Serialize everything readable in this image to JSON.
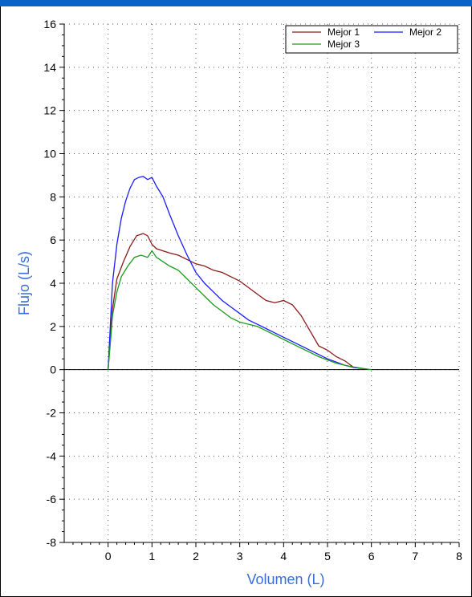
{
  "chart_data": {
    "type": "line",
    "title": "",
    "xlabel": "Volumen (L)",
    "ylabel": "Flujo (L/s)",
    "xlim": [
      -1,
      8
    ],
    "ylim": [
      -8,
      16
    ],
    "xticks": [
      0,
      1,
      2,
      3,
      4,
      5,
      6,
      7,
      8
    ],
    "yticks": [
      -8,
      -6,
      -4,
      -2,
      0,
      2,
      4,
      6,
      8,
      10,
      12,
      14,
      16
    ],
    "grid": true,
    "legend_position": "top-right",
    "series": [
      {
        "name": "Mejor 1",
        "color": "#8b1a1a",
        "x": [
          0,
          0.05,
          0.1,
          0.2,
          0.35,
          0.5,
          0.65,
          0.8,
          0.9,
          1.0,
          1.1,
          1.25,
          1.4,
          1.6,
          1.8,
          2.0,
          2.2,
          2.4,
          2.6,
          2.8,
          3.0,
          3.2,
          3.4,
          3.6,
          3.8,
          4.0,
          4.2,
          4.4,
          4.6,
          4.8,
          5.0,
          5.2,
          5.4,
          5.6
        ],
        "y": [
          0,
          1.5,
          2.8,
          4.2,
          5.0,
          5.7,
          6.2,
          6.3,
          6.2,
          5.8,
          5.6,
          5.5,
          5.4,
          5.3,
          5.1,
          4.9,
          4.8,
          4.6,
          4.5,
          4.3,
          4.1,
          3.8,
          3.5,
          3.2,
          3.1,
          3.2,
          3.0,
          2.5,
          1.8,
          1.1,
          0.9,
          0.6,
          0.4,
          0.1
        ]
      },
      {
        "name": "Mejor 2",
        "color": "#1a1aff",
        "x": [
          0,
          0.05,
          0.1,
          0.2,
          0.3,
          0.4,
          0.5,
          0.6,
          0.7,
          0.8,
          0.9,
          1.0,
          1.1,
          1.25,
          1.4,
          1.6,
          1.8,
          2.0,
          2.2,
          2.4,
          2.6,
          2.8,
          3.0,
          3.2,
          3.4,
          3.6,
          3.8,
          4.0,
          4.2,
          4.4,
          4.6,
          4.8,
          5.0,
          5.2,
          5.4,
          5.6,
          5.8
        ],
        "y": [
          0,
          2.0,
          4.0,
          5.8,
          7.0,
          7.8,
          8.4,
          8.8,
          8.9,
          8.95,
          8.8,
          8.9,
          8.5,
          8.0,
          7.2,
          6.2,
          5.3,
          4.5,
          4.0,
          3.6,
          3.2,
          2.9,
          2.6,
          2.3,
          2.1,
          1.9,
          1.7,
          1.5,
          1.3,
          1.1,
          0.9,
          0.7,
          0.5,
          0.35,
          0.2,
          0.1,
          0.05
        ]
      },
      {
        "name": "Mejor 3",
        "color": "#1a9a1a",
        "x": [
          0,
          0.05,
          0.1,
          0.2,
          0.3,
          0.45,
          0.6,
          0.75,
          0.9,
          1.0,
          1.1,
          1.25,
          1.4,
          1.6,
          1.8,
          2.0,
          2.2,
          2.4,
          2.6,
          2.8,
          3.0,
          3.2,
          3.4,
          3.6,
          3.8,
          4.0,
          4.2,
          4.4,
          4.6,
          4.8,
          5.0,
          5.2,
          5.4,
          5.6,
          5.8,
          6.0
        ],
        "y": [
          0,
          1.2,
          2.5,
          3.6,
          4.3,
          4.8,
          5.2,
          5.3,
          5.2,
          5.5,
          5.2,
          5.0,
          4.8,
          4.6,
          4.2,
          3.8,
          3.4,
          3.0,
          2.7,
          2.4,
          2.2,
          2.1,
          2.0,
          1.8,
          1.6,
          1.4,
          1.2,
          1.0,
          0.8,
          0.6,
          0.45,
          0.3,
          0.2,
          0.12,
          0.06,
          0.0
        ]
      }
    ]
  }
}
